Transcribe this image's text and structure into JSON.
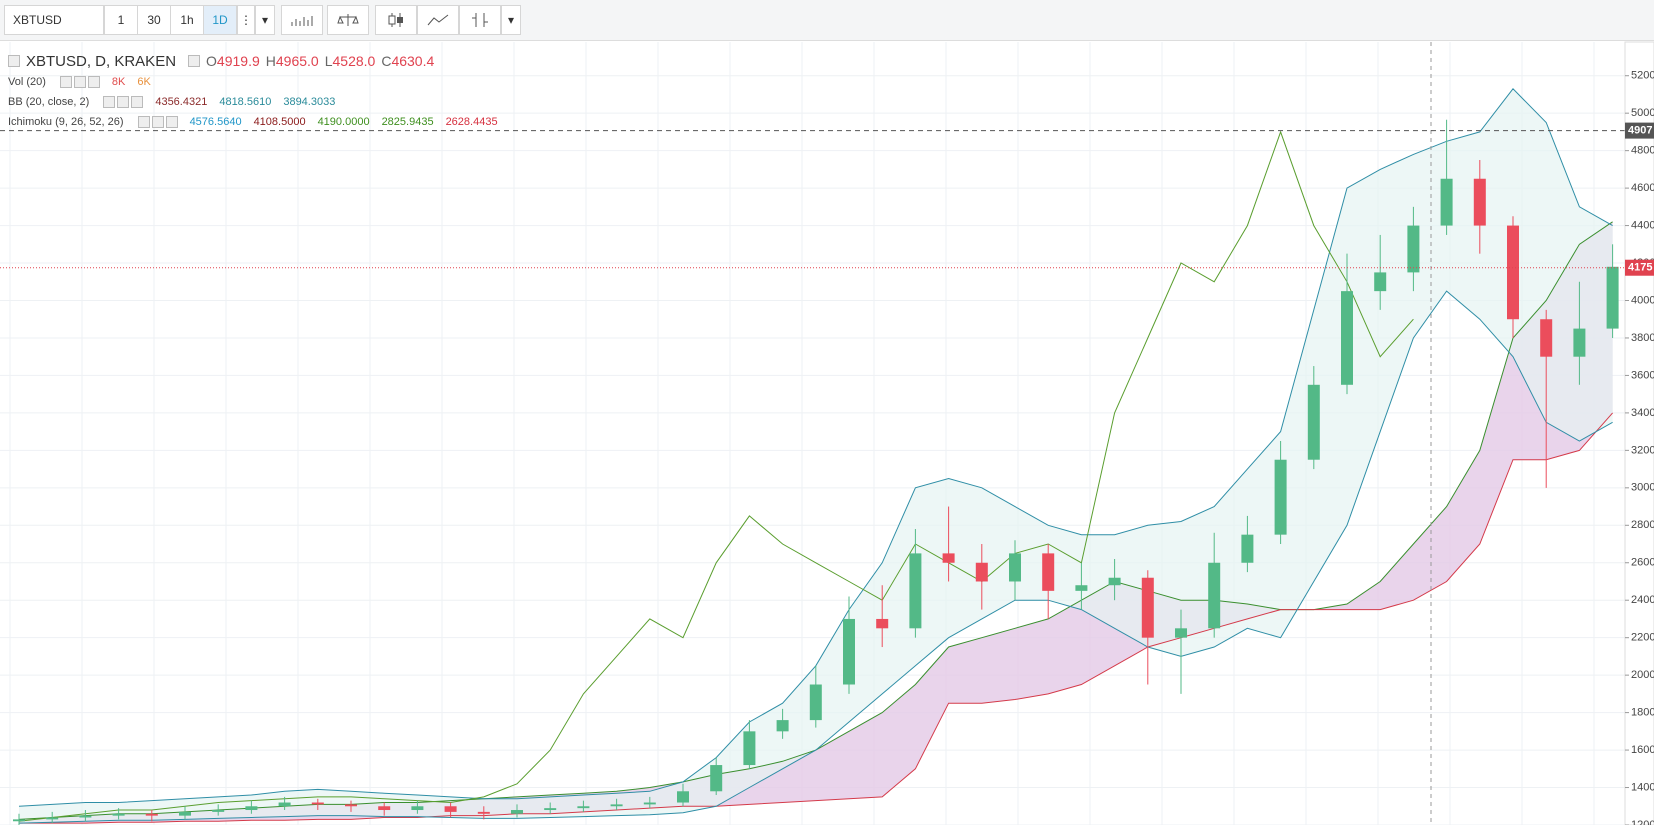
{
  "toolbar": {
    "symbol": "XBTUSD",
    "intervals": [
      "1",
      "30",
      "1h",
      "1D"
    ],
    "active_interval": "1D"
  },
  "chart_data": {
    "type": "candlestick",
    "title": "XBTUSD, D, KRAKEN",
    "ohlc": {
      "names": [
        "O",
        "H",
        "L",
        "C"
      ],
      "values": [
        4919.9,
        4965,
        4528,
        4630.4
      ],
      "value_labels": [
        "4919.9",
        "4965.0",
        "4528.0",
        "4630.4"
      ],
      "color": "#e0424f"
    },
    "indicators": [
      {
        "name": "Vol (20)",
        "values": [
          8000,
          6000
        ],
        "value_labels": [
          "8K",
          "6K"
        ],
        "colors": [
          "#e04d4d",
          "#e8913d"
        ]
      },
      {
        "name": "BB (20, close, 2)",
        "values": [
          4356.4321,
          4818.561,
          3894.3033
        ],
        "value_labels": [
          "4356.4321",
          "4818.5610",
          "3894.3033"
        ],
        "colors": [
          "#8b2b2b",
          "#2a8b9a",
          "#2a8b9a"
        ]
      },
      {
        "name": "Ichimoku (9, 26, 52, 26)",
        "values": [
          4576.564,
          4108.5,
          4190,
          2825.9435,
          2628.4435
        ],
        "value_labels": [
          "4576.5640",
          "4108.5000",
          "4190.0000",
          "2825.9435",
          "2628.4435"
        ],
        "colors": [
          "#2196c8",
          "#8b1a1a",
          "#3f8f1f",
          "#3f8f1f",
          "#d6303f"
        ]
      }
    ],
    "candles": [
      [
        1220,
        1260,
        1200,
        1230
      ],
      [
        1230,
        1270,
        1210,
        1240
      ],
      [
        1240,
        1280,
        1220,
        1250
      ],
      [
        1250,
        1290,
        1230,
        1260
      ],
      [
        1260,
        1280,
        1220,
        1250
      ],
      [
        1250,
        1300,
        1230,
        1270
      ],
      [
        1270,
        1310,
        1250,
        1280
      ],
      [
        1280,
        1330,
        1260,
        1300
      ],
      [
        1300,
        1350,
        1280,
        1320
      ],
      [
        1320,
        1340,
        1280,
        1310
      ],
      [
        1310,
        1330,
        1270,
        1300
      ],
      [
        1300,
        1320,
        1250,
        1280
      ],
      [
        1280,
        1330,
        1260,
        1300
      ],
      [
        1300,
        1320,
        1240,
        1270
      ],
      [
        1270,
        1300,
        1230,
        1260
      ],
      [
        1260,
        1310,
        1240,
        1280
      ],
      [
        1280,
        1320,
        1260,
        1290
      ],
      [
        1290,
        1330,
        1270,
        1300
      ],
      [
        1300,
        1340,
        1280,
        1310
      ],
      [
        1310,
        1350,
        1290,
        1320
      ],
      [
        1320,
        1420,
        1300,
        1380
      ],
      [
        1380,
        1560,
        1360,
        1520
      ],
      [
        1520,
        1760,
        1500,
        1700
      ],
      [
        1700,
        1820,
        1660,
        1760
      ],
      [
        1760,
        2050,
        1720,
        1950
      ],
      [
        1950,
        2420,
        1900,
        2300
      ],
      [
        2300,
        2480,
        2150,
        2250
      ],
      [
        2250,
        2780,
        2200,
        2650
      ],
      [
        2650,
        2900,
        2500,
        2600
      ],
      [
        2600,
        2700,
        2350,
        2500
      ],
      [
        2500,
        2720,
        2400,
        2650
      ],
      [
        2650,
        2700,
        2300,
        2450
      ],
      [
        2450,
        2600,
        2350,
        2480
      ],
      [
        2480,
        2620,
        2400,
        2520
      ],
      [
        2520,
        2560,
        1950,
        2200
      ],
      [
        2200,
        2350,
        1900,
        2250
      ],
      [
        2250,
        2760,
        2200,
        2600
      ],
      [
        2600,
        2850,
        2550,
        2750
      ],
      [
        2750,
        3250,
        2700,
        3150
      ],
      [
        3150,
        3650,
        3100,
        3550
      ],
      [
        3550,
        4250,
        3500,
        4050
      ],
      [
        4050,
        4350,
        3950,
        4150
      ],
      [
        4150,
        4500,
        4050,
        4400
      ],
      [
        4400,
        4965,
        4350,
        4650
      ],
      [
        4650,
        4750,
        4250,
        4400
      ],
      [
        4400,
        4450,
        3800,
        3900
      ],
      [
        3900,
        3950,
        3000,
        3700
      ],
      [
        3700,
        4100,
        3550,
        3850
      ],
      [
        3850,
        4300,
        3800,
        4180
      ]
    ],
    "up_color": "#53b987",
    "down_color": "#eb4d5c",
    "bb": {
      "upper": [
        1300,
        1310,
        1320,
        1320,
        1330,
        1340,
        1350,
        1360,
        1380,
        1390,
        1380,
        1370,
        1360,
        1350,
        1340,
        1340,
        1350,
        1360,
        1370,
        1380,
        1430,
        1560,
        1750,
        1850,
        2050,
        2350,
        2600,
        3000,
        3050,
        3000,
        2900,
        2800,
        2750,
        2750,
        2800,
        2820,
        2900,
        3100,
        3300,
        3950,
        4600,
        4700,
        4780,
        4850,
        4900,
        5130,
        4950,
        4500,
        4400
      ],
      "lower": [
        1210,
        1215,
        1220,
        1225,
        1225,
        1230,
        1235,
        1240,
        1245,
        1250,
        1250,
        1245,
        1245,
        1240,
        1235,
        1235,
        1240,
        1245,
        1250,
        1255,
        1265,
        1300,
        1400,
        1500,
        1600,
        1750,
        1900,
        2050,
        2200,
        2300,
        2400,
        2400,
        2350,
        2250,
        2150,
        2100,
        2150,
        2250,
        2200,
        2500,
        2800,
        3300,
        3800,
        4050,
        3900,
        3700,
        3350,
        3250,
        3350
      ],
      "color": "#2f8ea6",
      "fill": "#e6f3f2"
    },
    "ichimoku": {
      "lagging": [
        1220,
        1240,
        1260,
        1280,
        1280,
        1300,
        1320,
        1330,
        1340,
        1350,
        1350,
        1340,
        1330,
        1320,
        1350,
        1420,
        1600,
        1900,
        2100,
        2300,
        2200,
        2600,
        2850,
        2700,
        2600,
        2500,
        2400,
        2700,
        2600,
        2500,
        2650,
        2700,
        2600,
        3400,
        3800,
        4200,
        4100,
        4400,
        4900,
        4400,
        4100,
        3700,
        3900,
        null,
        null,
        null,
        null,
        null,
        null
      ],
      "lagging_color": "#5a9e2f",
      "span_a": [
        1230,
        1240,
        1250,
        1260,
        1260,
        1270,
        1280,
        1290,
        1300,
        1310,
        1310,
        1320,
        1320,
        1330,
        1340,
        1350,
        1360,
        1370,
        1380,
        1400,
        1430,
        1470,
        1500,
        1540,
        1600,
        1700,
        1800,
        1950,
        2150,
        2200,
        2250,
        2300,
        2400,
        2500,
        2450,
        2400,
        2400,
        2380,
        2350,
        2350,
        2380,
        2500,
        2700,
        2900,
        3200,
        3800,
        4000,
        4300,
        4420
      ],
      "span_b": [
        1210,
        1210,
        1210,
        1215,
        1215,
        1220,
        1220,
        1225,
        1225,
        1230,
        1230,
        1240,
        1240,
        1250,
        1250,
        1260,
        1260,
        1270,
        1280,
        1290,
        1300,
        1300,
        1310,
        1320,
        1330,
        1340,
        1350,
        1500,
        1850,
        1850,
        1870,
        1900,
        1950,
        2050,
        2150,
        2200,
        2250,
        2300,
        2350,
        2350,
        2350,
        2350,
        2400,
        2500,
        2700,
        3150,
        3150,
        3200,
        3400
      ],
      "span_a_color": "#3a8f2f",
      "span_b_color": "#d43a4a",
      "cloud_fill": "#e3c9e6"
    },
    "price_lines": [
      {
        "value": 4907,
        "label": "4907",
        "color": "#555555",
        "style": "dashed"
      },
      {
        "value": 4175,
        "label": "4175",
        "color": "#e0424f",
        "style": "dotted"
      }
    ],
    "ylim": [
      1200,
      5380
    ],
    "yticks": [
      1200,
      1400,
      1600,
      1800,
      2000,
      2200,
      2400,
      2600,
      2800,
      3000,
      3200,
      3400,
      3600,
      3800,
      4000,
      4200,
      4400,
      4600,
      4800,
      5000,
      5200
    ],
    "grid": true
  }
}
